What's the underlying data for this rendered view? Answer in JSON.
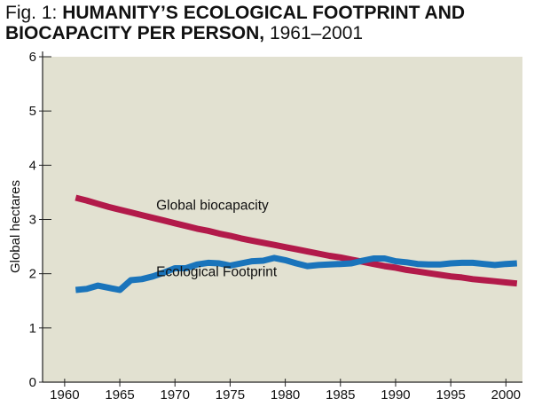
{
  "title": {
    "prefix": "Fig. 1: ",
    "main": "HUMANITY’S ECOLOGICAL FOOTPRINT AND BIOCAPACITY PER PERSON,",
    "suffix": " 1961–2001"
  },
  "colors": {
    "plot_background": "#e2e1d1",
    "biocapacity": "#b21a4a",
    "footprint": "#1a74bb",
    "axis": "#222222"
  },
  "chart_data": {
    "type": "line",
    "title": "Fig. 1: HUMANITY’S ECOLOGICAL FOOTPRINT AND BIOCAPACITY PER PERSON, 1961–2001",
    "xlabel": "",
    "ylabel": "Global hectares",
    "xlim": [
      1958,
      2001.5
    ],
    "ylim": [
      0,
      6
    ],
    "x_ticks": [
      1960,
      1965,
      1970,
      1975,
      1980,
      1985,
      1990,
      1995,
      2000
    ],
    "x_tick_labels": [
      "1960",
      "1965",
      "1970",
      "1975",
      "1980",
      "1985",
      "1990",
      "1995",
      "2000"
    ],
    "y_ticks": [
      0,
      1,
      2,
      3,
      4,
      5,
      6
    ],
    "y_tick_labels": [
      "0",
      "1",
      "2",
      "3",
      "4",
      "5",
      "6"
    ],
    "grid": false,
    "legend": "none",
    "x": [
      1961,
      1962,
      1963,
      1964,
      1965,
      1966,
      1967,
      1968,
      1969,
      1970,
      1971,
      1972,
      1973,
      1974,
      1975,
      1976,
      1977,
      1978,
      1979,
      1980,
      1981,
      1982,
      1983,
      1984,
      1985,
      1986,
      1987,
      1988,
      1989,
      1990,
      1991,
      1992,
      1993,
      1994,
      1995,
      1996,
      1997,
      1998,
      1999,
      2000,
      2001
    ],
    "series": [
      {
        "name": "Global biocapacity",
        "color": "#b21a4a",
        "values": [
          3.4,
          3.35,
          3.29,
          3.23,
          3.18,
          3.13,
          3.08,
          3.03,
          2.98,
          2.93,
          2.88,
          2.83,
          2.79,
          2.74,
          2.7,
          2.65,
          2.61,
          2.57,
          2.53,
          2.49,
          2.45,
          2.41,
          2.37,
          2.33,
          2.3,
          2.26,
          2.22,
          2.18,
          2.14,
          2.11,
          2.07,
          2.04,
          2.01,
          1.98,
          1.95,
          1.93,
          1.9,
          1.88,
          1.86,
          1.84,
          1.82
        ]
      },
      {
        "name": "Ecological Footprint",
        "color": "#1a74bb",
        "values": [
          1.7,
          1.72,
          1.78,
          1.74,
          1.7,
          1.88,
          1.9,
          1.95,
          2.02,
          2.1,
          2.1,
          2.17,
          2.2,
          2.19,
          2.15,
          2.19,
          2.23,
          2.24,
          2.29,
          2.25,
          2.19,
          2.14,
          2.16,
          2.17,
          2.18,
          2.19,
          2.24,
          2.28,
          2.28,
          2.23,
          2.21,
          2.18,
          2.17,
          2.17,
          2.19,
          2.2,
          2.2,
          2.18,
          2.16,
          2.18,
          2.19
        ]
      }
    ],
    "annotations": [
      {
        "text": "Global biocapacity",
        "x": 1968.3,
        "y": 3.18
      },
      {
        "text": "Ecological Footprint",
        "x": 1968.3,
        "y": 1.95
      }
    ]
  }
}
